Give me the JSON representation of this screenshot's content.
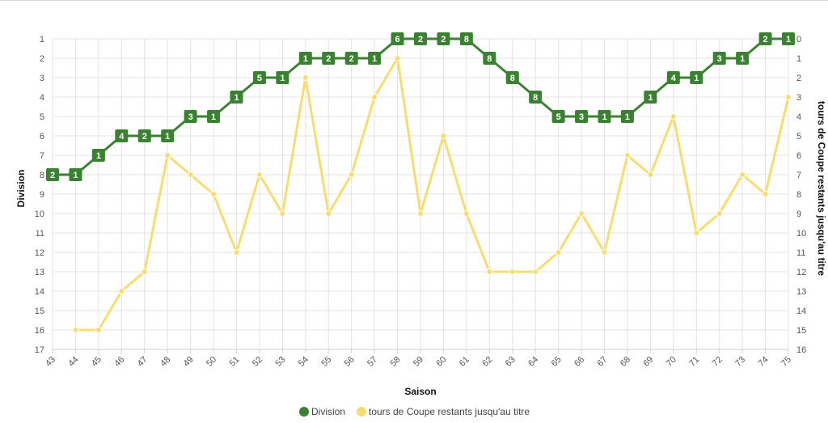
{
  "chart_data": {
    "type": "line",
    "x": [
      43,
      44,
      45,
      46,
      47,
      48,
      49,
      50,
      51,
      52,
      53,
      54,
      55,
      56,
      57,
      58,
      59,
      60,
      61,
      62,
      63,
      64,
      65,
      66,
      67,
      68,
      69,
      70,
      71,
      72,
      73,
      74,
      75
    ],
    "xlabel": "Saison",
    "y_left": {
      "label": "Division",
      "range": [
        1,
        17
      ],
      "inverted": true,
      "ticks": [
        1,
        2,
        3,
        4,
        5,
        6,
        7,
        8,
        9,
        10,
        11,
        12,
        13,
        14,
        15,
        16,
        17
      ]
    },
    "y_right": {
      "label": "tours de Coupe restants jusqu'au titre",
      "range": [
        0,
        16
      ],
      "inverted": true,
      "ticks": [
        0,
        1,
        2,
        3,
        4,
        5,
        6,
        7,
        8,
        9,
        10,
        11,
        12,
        13,
        14,
        15,
        16
      ]
    },
    "grid": true,
    "legend_position": "bottom",
    "series": [
      {
        "name": "Division",
        "axis": "left",
        "color": "#3b8132",
        "values": [
          8,
          8,
          7,
          6,
          6,
          6,
          5,
          5,
          4,
          3,
          3,
          2,
          2,
          2,
          2,
          1,
          1,
          1,
          1,
          2,
          3,
          4,
          5,
          5,
          5,
          5,
          4,
          3,
          3,
          2,
          2,
          1,
          1
        ],
        "point_labels": [
          "2",
          "1",
          "1",
          "4",
          "2",
          "1",
          "3",
          "1",
          "1",
          "5",
          "1",
          "1",
          "2",
          "2",
          "1",
          "6",
          "2",
          "2",
          "8",
          "8",
          "8",
          "8",
          "5",
          "3",
          "1",
          "1",
          "1",
          "4",
          "1",
          "3",
          "1",
          "2",
          "1"
        ]
      },
      {
        "name": "tours de Coupe restants jusqu'au titre",
        "axis": "right",
        "color": "#f7dc6f",
        "values": [
          null,
          15,
          15,
          13,
          12,
          6,
          7,
          8,
          11,
          7,
          9,
          2,
          9,
          7,
          3,
          1,
          9,
          5,
          9,
          12,
          12,
          12,
          11,
          9,
          11,
          6,
          7,
          4,
          10,
          9,
          7,
          8,
          3
        ]
      }
    ]
  }
}
